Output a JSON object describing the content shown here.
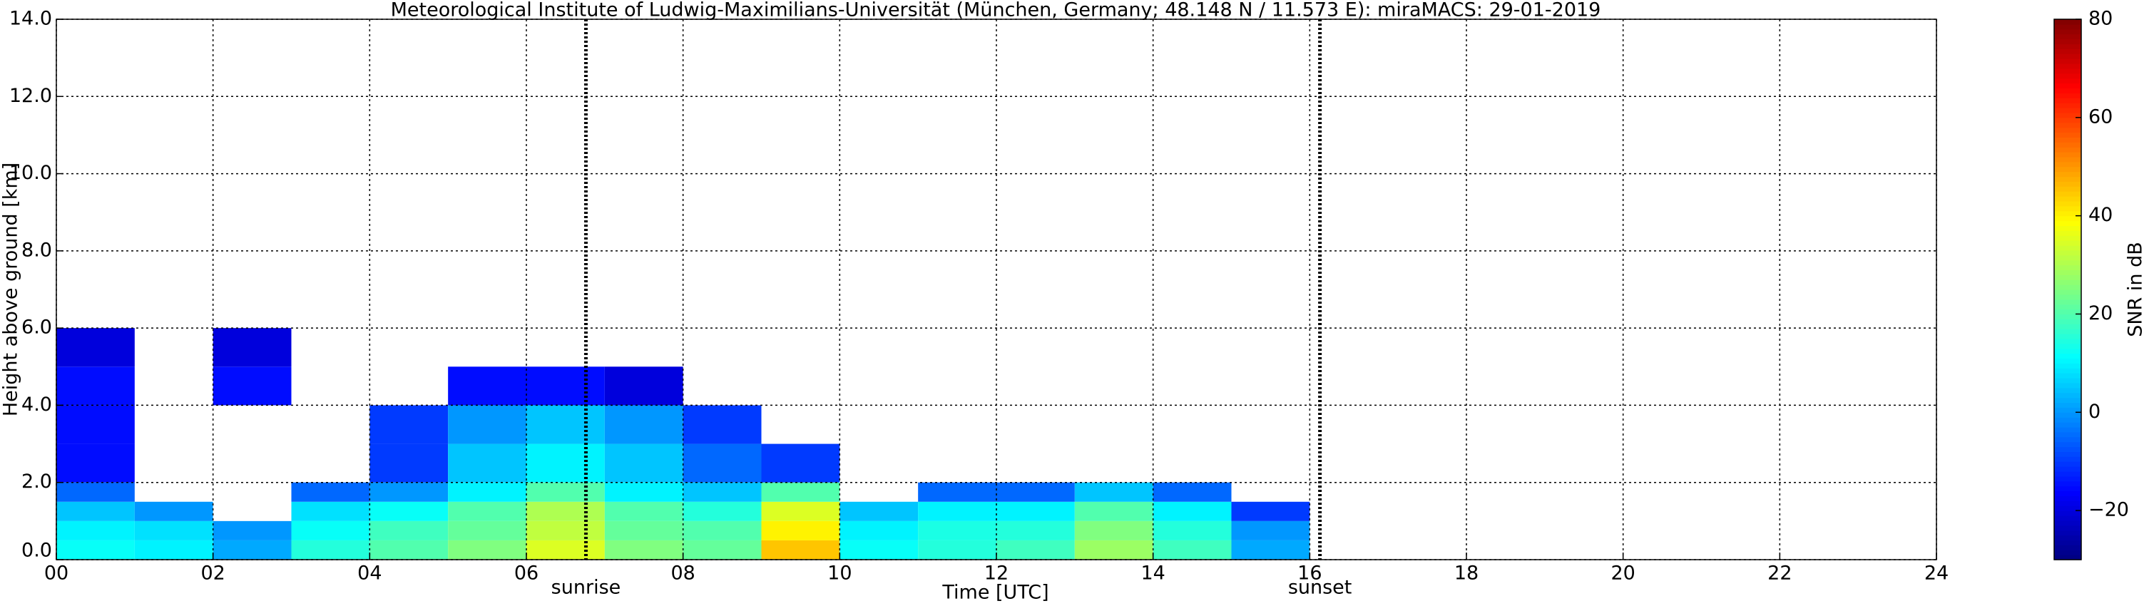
{
  "chart_data": {
    "type": "heatmap",
    "title": "Meteorological Institute of Ludwig-Maximilians-Universität (München, Germany; 48.148 N / 11.573 E):    miraMACS: 29-01-2019",
    "x_label": "Time [UTC]",
    "y_label": "Height above ground [km]",
    "colorbar_label": "SNR in dB",
    "xlim": [
      0,
      24
    ],
    "xticks": [
      {
        "value": 0,
        "label": "00"
      },
      {
        "value": 2,
        "label": "02"
      },
      {
        "value": 4,
        "label": "04"
      },
      {
        "value": 6,
        "label": "06"
      },
      {
        "value": 8,
        "label": "08"
      },
      {
        "value": 10,
        "label": "10"
      },
      {
        "value": 12,
        "label": "12"
      },
      {
        "value": 14,
        "label": "14"
      },
      {
        "value": 16,
        "label": "16"
      },
      {
        "value": 18,
        "label": "18"
      },
      {
        "value": 20,
        "label": "20"
      },
      {
        "value": 22,
        "label": "22"
      },
      {
        "value": 24,
        "label": "24"
      }
    ],
    "ylim": [
      0,
      14
    ],
    "yticks": [
      {
        "value": 0,
        "label": "0.0"
      },
      {
        "value": 2,
        "label": "2.0"
      },
      {
        "value": 4,
        "label": "4.0"
      },
      {
        "value": 6,
        "label": "6.0"
      },
      {
        "value": 8,
        "label": "8.0"
      },
      {
        "value": 10,
        "label": "10.0"
      },
      {
        "value": 12,
        "label": "12.0"
      },
      {
        "value": 14,
        "label": "14.0"
      }
    ],
    "clim": [
      -30,
      80
    ],
    "cticks": [
      {
        "value": -20,
        "label": "−20"
      },
      0,
      20,
      40,
      60,
      80
    ],
    "grid": true,
    "colormap": "jet",
    "annotations": [
      {
        "text": "sunrise",
        "x": 6.76
      },
      {
        "text": "sunset",
        "x": 16.13
      }
    ],
    "x_edges": [
      0,
      1,
      2,
      3,
      4,
      5,
      6,
      7,
      8,
      9,
      10,
      11,
      12,
      13,
      14,
      15,
      16
    ],
    "y_edges": [
      0,
      0.5,
      1,
      1.5,
      2,
      3,
      4,
      5,
      6
    ],
    "z": [
      [
        12,
        10,
        2,
        15,
        20,
        25,
        35,
        25,
        22,
        45,
        12,
        15,
        18,
        28,
        18,
        2
      ],
      [
        10,
        8,
        0,
        12,
        18,
        22,
        32,
        22,
        20,
        40,
        10,
        14,
        15,
        25,
        15,
        0
      ],
      [
        5,
        0,
        null,
        8,
        12,
        20,
        30,
        20,
        15,
        35,
        5,
        10,
        10,
        20,
        10,
        -10
      ],
      [
        -5,
        null,
        null,
        -5,
        0,
        10,
        20,
        10,
        5,
        20,
        null,
        -5,
        -5,
        5,
        -5,
        null
      ],
      [
        -15,
        null,
        null,
        null,
        -10,
        5,
        10,
        5,
        -5,
        -10,
        null,
        null,
        null,
        null,
        null,
        null
      ],
      [
        -15,
        null,
        null,
        null,
        -10,
        0,
        5,
        0,
        -10,
        null,
        null,
        null,
        null,
        null,
        null,
        null
      ],
      [
        -15,
        null,
        -15,
        null,
        null,
        -15,
        -15,
        -20,
        null,
        null,
        null,
        null,
        null,
        null,
        null,
        null
      ],
      [
        -20,
        null,
        -20,
        null,
        null,
        null,
        null,
        null,
        null,
        null,
        null,
        null,
        null,
        null,
        null,
        null
      ]
    ]
  }
}
